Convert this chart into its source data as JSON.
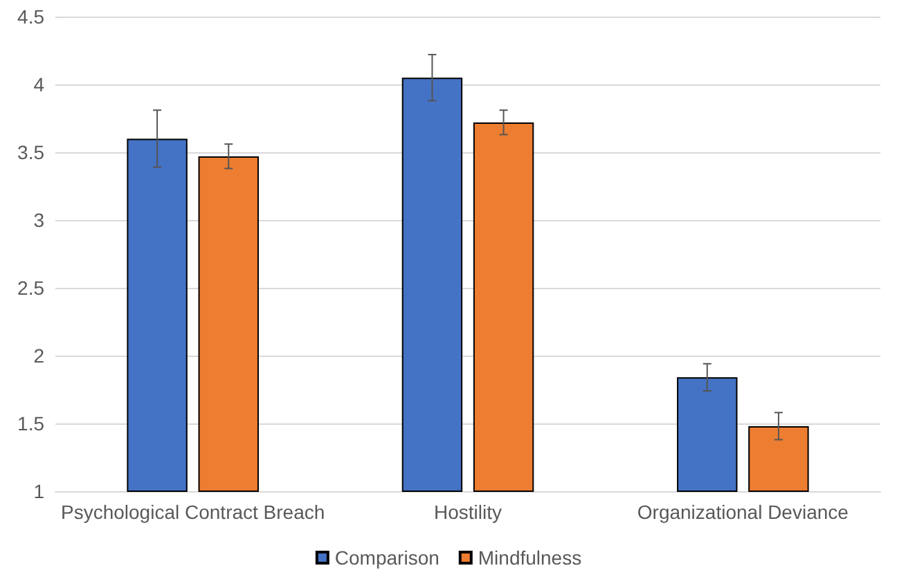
{
  "chart_data": {
    "type": "bar",
    "categories": [
      "Psychological Contract Breach",
      "Hostility",
      "Organizational Deviance"
    ],
    "series": [
      {
        "name": "Comparison",
        "color": "#4472c4",
        "values": [
          3.6,
          4.05,
          1.84
        ],
        "errors": [
          0.21,
          0.17,
          0.1
        ]
      },
      {
        "name": "Mindfulness",
        "color": "#ed7d31",
        "values": [
          3.47,
          3.72,
          1.48
        ],
        "errors": [
          0.09,
          0.09,
          0.1
        ]
      }
    ],
    "ylim": [
      1,
      4.5
    ],
    "yticks": [
      1,
      1.5,
      2,
      2.5,
      3,
      3.5,
      4,
      4.5
    ],
    "grid": "y",
    "legend": "bottom"
  }
}
